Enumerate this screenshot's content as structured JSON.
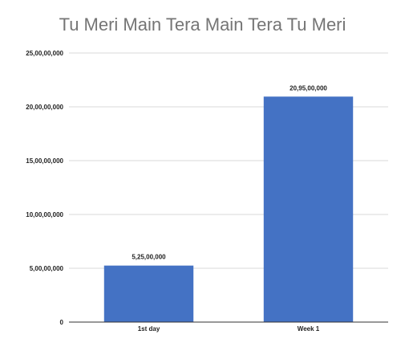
{
  "chart_data": {
    "type": "bar",
    "title": "Tu Meri Main Tera Main Tera Tu Meri",
    "xlabel": "",
    "ylabel": "",
    "categories": [
      "1st day",
      "Week 1"
    ],
    "values": [
      52500000,
      209500000
    ],
    "data_labels": [
      "5,25,00,000",
      "20,95,00,000"
    ],
    "ylim": [
      0,
      250000000
    ],
    "y_ticks": [
      0,
      50000000,
      100000000,
      150000000,
      200000000,
      250000000
    ],
    "y_tick_labels": [
      "0",
      "5,00,00,000",
      "10,00,00,000",
      "15,00,00,000",
      "20,00,00,000",
      "25,00,00,000"
    ],
    "grid": true,
    "legend": "none",
    "colors": {
      "bar": "#4472c4",
      "grid": "#d9d9d9",
      "axis": "#333333"
    }
  }
}
